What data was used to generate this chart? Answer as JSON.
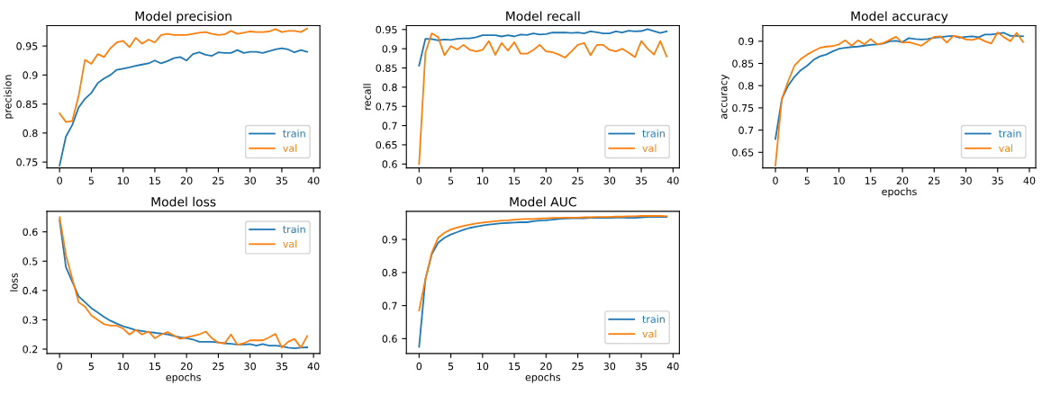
{
  "chart_data": [
    {
      "type": "line",
      "title": "Model precision",
      "ylabel": "precision",
      "x": [
        0,
        1,
        2,
        3,
        4,
        5,
        6,
        7,
        8,
        9,
        10,
        11,
        12,
        13,
        14,
        15,
        16,
        17,
        18,
        19,
        20,
        21,
        22,
        23,
        24,
        25,
        26,
        27,
        28,
        29,
        30,
        31,
        32,
        33,
        34,
        35,
        36,
        37,
        38,
        39
      ],
      "xlim": [
        -2,
        41
      ],
      "xticks": [
        0,
        5,
        10,
        15,
        20,
        25,
        30,
        35,
        40
      ],
      "ylim": [
        0.74,
        0.985
      ],
      "yticks": [
        0.75,
        0.8,
        0.85,
        0.9,
        0.95
      ],
      "legend": "bottom right",
      "grid": false,
      "series": [
        {
          "name": "train",
          "color": "#1f77b4",
          "values": [
            0.744,
            0.794,
            0.814,
            0.844,
            0.859,
            0.869,
            0.886,
            0.894,
            0.9,
            0.909,
            0.911,
            0.913,
            0.916,
            0.918,
            0.92,
            0.925,
            0.92,
            0.924,
            0.929,
            0.931,
            0.925,
            0.936,
            0.939,
            0.935,
            0.933,
            0.939,
            0.938,
            0.938,
            0.943,
            0.938,
            0.94,
            0.94,
            0.938,
            0.941,
            0.944,
            0.946,
            0.944,
            0.939,
            0.943,
            0.94
          ]
        },
        {
          "name": "val",
          "color": "#ff7f0e",
          "values": [
            0.834,
            0.819,
            0.821,
            0.864,
            0.926,
            0.919,
            0.936,
            0.931,
            0.946,
            0.956,
            0.959,
            0.948,
            0.964,
            0.954,
            0.961,
            0.956,
            0.969,
            0.971,
            0.969,
            0.969,
            0.969,
            0.971,
            0.973,
            0.974,
            0.971,
            0.969,
            0.97,
            0.976,
            0.971,
            0.973,
            0.975,
            0.974,
            0.974,
            0.975,
            0.979,
            0.974,
            0.976,
            0.976,
            0.974,
            0.98
          ]
        }
      ]
    },
    {
      "type": "line",
      "title": "Model recall",
      "ylabel": "recall",
      "x": [
        0,
        1,
        2,
        3,
        4,
        5,
        6,
        7,
        8,
        9,
        10,
        11,
        12,
        13,
        14,
        15,
        16,
        17,
        18,
        19,
        20,
        21,
        22,
        23,
        24,
        25,
        26,
        27,
        28,
        29,
        30,
        31,
        32,
        33,
        34,
        35,
        36,
        37,
        38,
        39
      ],
      "xlim": [
        -2,
        41
      ],
      "xticks": [
        0,
        5,
        10,
        15,
        20,
        25,
        30,
        35,
        40
      ],
      "ylim": [
        0.59,
        0.96
      ],
      "yticks": [
        0.6,
        0.65,
        0.7,
        0.75,
        0.8,
        0.85,
        0.9,
        0.95
      ],
      "legend": "bottom right",
      "grid": false,
      "series": [
        {
          "name": "train",
          "color": "#1f77b4",
          "values": [
            0.856,
            0.926,
            0.925,
            0.922,
            0.924,
            0.923,
            0.926,
            0.927,
            0.927,
            0.93,
            0.935,
            0.935,
            0.935,
            0.932,
            0.935,
            0.932,
            0.937,
            0.936,
            0.94,
            0.937,
            0.938,
            0.942,
            0.942,
            0.942,
            0.941,
            0.942,
            0.94,
            0.945,
            0.943,
            0.94,
            0.94,
            0.945,
            0.942,
            0.947,
            0.945,
            0.946,
            0.951,
            0.946,
            0.941,
            0.945
          ]
        },
        {
          "name": "val",
          "color": "#ff7f0e",
          "values": [
            0.6,
            0.89,
            0.94,
            0.93,
            0.883,
            0.907,
            0.898,
            0.91,
            0.897,
            0.893,
            0.897,
            0.92,
            0.884,
            0.915,
            0.895,
            0.917,
            0.887,
            0.887,
            0.897,
            0.91,
            0.893,
            0.891,
            0.885,
            0.877,
            0.893,
            0.91,
            0.915,
            0.883,
            0.91,
            0.91,
            0.897,
            0.893,
            0.9,
            0.89,
            0.878,
            0.92,
            0.9,
            0.885,
            0.92,
            0.88
          ]
        }
      ]
    },
    {
      "type": "line",
      "title": "Model accuracy",
      "ylabel": "accuracy",
      "xlabel": "epochs",
      "x": [
        0,
        1,
        2,
        3,
        4,
        5,
        6,
        7,
        8,
        9,
        10,
        11,
        12,
        13,
        14,
        15,
        16,
        17,
        18,
        19,
        20,
        21,
        22,
        23,
        24,
        25,
        26,
        27,
        28,
        29,
        30,
        31,
        32,
        33,
        34,
        35,
        36,
        37,
        38,
        39
      ],
      "xlim": [
        -2,
        41
      ],
      "xticks": [
        0,
        5,
        10,
        15,
        20,
        25,
        30,
        35,
        40
      ],
      "ylim": [
        0.615,
        0.935
      ],
      "yticks": [
        0.65,
        0.7,
        0.75,
        0.8,
        0.85,
        0.9
      ],
      "legend": "bottom right",
      "grid": false,
      "series": [
        {
          "name": "train",
          "color": "#1f77b4",
          "values": [
            0.68,
            0.77,
            0.8,
            0.82,
            0.835,
            0.845,
            0.858,
            0.866,
            0.87,
            0.877,
            0.883,
            0.885,
            0.887,
            0.888,
            0.89,
            0.892,
            0.893,
            0.895,
            0.9,
            0.901,
            0.898,
            0.907,
            0.905,
            0.904,
            0.905,
            0.908,
            0.909,
            0.911,
            0.912,
            0.908,
            0.91,
            0.911,
            0.909,
            0.915,
            0.915,
            0.917,
            0.919,
            0.912,
            0.912,
            0.911
          ]
        },
        {
          "name": "val",
          "color": "#ff7f0e",
          "values": [
            0.62,
            0.77,
            0.81,
            0.845,
            0.86,
            0.87,
            0.878,
            0.885,
            0.888,
            0.889,
            0.893,
            0.902,
            0.89,
            0.902,
            0.893,
            0.905,
            0.893,
            0.896,
            0.903,
            0.91,
            0.897,
            0.898,
            0.894,
            0.89,
            0.9,
            0.91,
            0.911,
            0.897,
            0.912,
            0.91,
            0.904,
            0.903,
            0.907,
            0.9,
            0.895,
            0.92,
            0.909,
            0.9,
            0.919,
            0.898
          ]
        }
      ]
    },
    {
      "type": "line",
      "title": "Model loss",
      "ylabel": "loss",
      "xlabel": "epochs",
      "x": [
        0,
        1,
        2,
        3,
        4,
        5,
        6,
        7,
        8,
        9,
        10,
        11,
        12,
        13,
        14,
        15,
        16,
        17,
        18,
        19,
        20,
        21,
        22,
        23,
        24,
        25,
        26,
        27,
        28,
        29,
        30,
        31,
        32,
        33,
        34,
        35,
        36,
        37,
        38,
        39
      ],
      "xlim": [
        -2,
        41
      ],
      "xticks": [
        0,
        5,
        10,
        15,
        20,
        25,
        30,
        35,
        40
      ],
      "ylim": [
        0.185,
        0.67
      ],
      "yticks": [
        0.2,
        0.3,
        0.4,
        0.5,
        0.6
      ],
      "legend": "top right",
      "grid": false,
      "series": [
        {
          "name": "train",
          "color": "#1f77b4",
          "values": [
            0.64,
            0.48,
            0.43,
            0.38,
            0.36,
            0.34,
            0.325,
            0.31,
            0.297,
            0.287,
            0.278,
            0.272,
            0.265,
            0.262,
            0.258,
            0.256,
            0.253,
            0.25,
            0.245,
            0.24,
            0.237,
            0.233,
            0.225,
            0.225,
            0.225,
            0.223,
            0.22,
            0.218,
            0.216,
            0.216,
            0.217,
            0.212,
            0.217,
            0.212,
            0.212,
            0.21,
            0.205,
            0.203,
            0.205,
            0.206
          ]
        },
        {
          "name": "val",
          "color": "#ff7f0e",
          "values": [
            0.65,
            0.52,
            0.44,
            0.36,
            0.345,
            0.315,
            0.3,
            0.285,
            0.28,
            0.28,
            0.27,
            0.25,
            0.265,
            0.25,
            0.26,
            0.237,
            0.25,
            0.258,
            0.247,
            0.235,
            0.24,
            0.245,
            0.25,
            0.26,
            0.237,
            0.222,
            0.22,
            0.25,
            0.215,
            0.22,
            0.23,
            0.23,
            0.23,
            0.24,
            0.252,
            0.205,
            0.225,
            0.235,
            0.205,
            0.245
          ]
        }
      ]
    },
    {
      "type": "line",
      "title": "Model AUC",
      "xlabel": "epochs",
      "x": [
        0,
        1,
        2,
        3,
        4,
        5,
        6,
        7,
        8,
        9,
        10,
        11,
        12,
        13,
        14,
        15,
        16,
        17,
        18,
        19,
        20,
        21,
        22,
        23,
        24,
        25,
        26,
        27,
        28,
        29,
        30,
        31,
        32,
        33,
        34,
        35,
        36,
        37,
        38,
        39
      ],
      "xlim": [
        -2,
        41
      ],
      "xticks": [
        0,
        5,
        10,
        15,
        20,
        25,
        30,
        35,
        40
      ],
      "ylim": [
        0.555,
        0.985
      ],
      "yticks": [
        0.6,
        0.7,
        0.8,
        0.9
      ],
      "legend": "bottom right",
      "grid": false,
      "series": [
        {
          "name": "train",
          "color": "#1f77b4",
          "values": [
            0.575,
            0.78,
            0.855,
            0.89,
            0.905,
            0.915,
            0.922,
            0.929,
            0.935,
            0.939,
            0.942,
            0.945,
            0.947,
            0.949,
            0.95,
            0.951,
            0.952,
            0.952,
            0.955,
            0.957,
            0.958,
            0.96,
            0.962,
            0.963,
            0.964,
            0.964,
            0.964,
            0.965,
            0.966,
            0.965,
            0.965,
            0.966,
            0.966,
            0.965,
            0.965,
            0.967,
            0.968,
            0.968,
            0.968,
            0.968
          ]
        },
        {
          "name": "val",
          "color": "#ff7f0e",
          "values": [
            0.685,
            0.78,
            0.86,
            0.905,
            0.92,
            0.93,
            0.936,
            0.941,
            0.945,
            0.948,
            0.951,
            0.953,
            0.955,
            0.957,
            0.958,
            0.96,
            0.961,
            0.962,
            0.962,
            0.963,
            0.964,
            0.965,
            0.965,
            0.966,
            0.966,
            0.966,
            0.967,
            0.967,
            0.968,
            0.968,
            0.968,
            0.969,
            0.969,
            0.97,
            0.97,
            0.971,
            0.971,
            0.971,
            0.971,
            0.97
          ]
        }
      ]
    }
  ]
}
